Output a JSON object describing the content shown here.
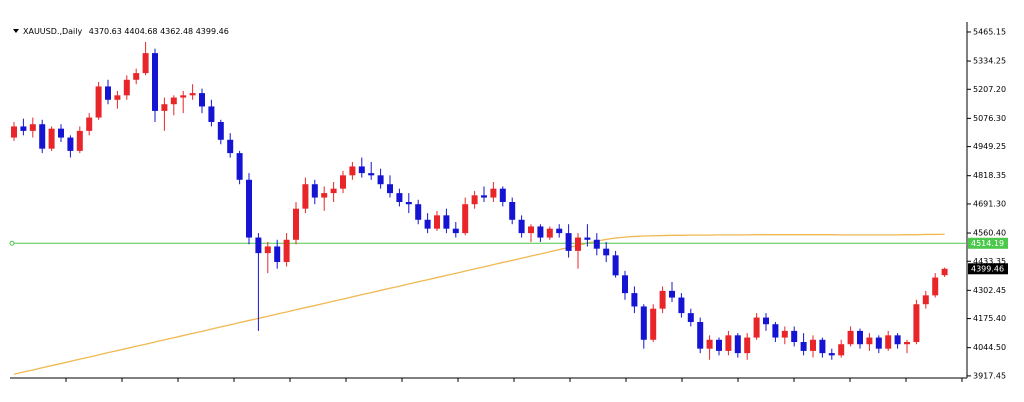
{
  "chart_data": {
    "type": "candlestick",
    "symbol": "XAUUSD.,Daily",
    "up_color": "#e8262a",
    "down_color": "#1414d2",
    "ylim": [
      3908,
      5510
    ],
    "yticks": [
      5465.15,
      5334.25,
      {
        "value": 5207.2,
        "label": "5207.20"
      },
      {
        "value": 5076.3,
        "label": "5076.30"
      },
      4949.25,
      4818.35,
      {
        "value": 4691.3,
        "label": "4691.30"
      },
      {
        "value": 4560.4,
        "label": "4560.40"
      },
      4433.35,
      4302.45,
      {
        "value": 4175.4,
        "label": "4175.40"
      },
      {
        "value": 4044.5,
        "label": "4044.50"
      },
      3917.45
    ],
    "candles": [
      [
        4990,
        5060,
        4975,
        5040
      ],
      [
        5040,
        5075,
        5000,
        5020
      ],
      [
        5020,
        5080,
        4990,
        5050
      ],
      [
        5050,
        5070,
        4920,
        4940
      ],
      [
        4940,
        5040,
        4930,
        5030
      ],
      [
        5030,
        5050,
        4970,
        4990
      ],
      [
        4990,
        5000,
        4900,
        4930
      ],
      [
        4930,
        5040,
        4920,
        5020
      ],
      [
        5020,
        5100,
        5000,
        5080
      ],
      [
        5080,
        5240,
        5070,
        5220
      ],
      [
        5220,
        5250,
        5140,
        5160
      ],
      [
        5160,
        5200,
        5120,
        5180
      ],
      [
        5180,
        5270,
        5160,
        5250
      ],
      [
        5250,
        5300,
        5230,
        5280
      ],
      [
        5280,
        5420,
        5270,
        5370
      ],
      [
        5370,
        5390,
        5060,
        5110
      ],
      [
        5110,
        5170,
        5020,
        5140
      ],
      [
        5140,
        5180,
        5090,
        5170
      ],
      [
        5170,
        5200,
        5100,
        5180
      ],
      [
        5180,
        5230,
        5160,
        5190
      ],
      [
        5190,
        5210,
        5100,
        5130
      ],
      [
        5130,
        5160,
        5040,
        5060
      ],
      [
        5060,
        5070,
        4960,
        4980
      ],
      [
        4980,
        5010,
        4900,
        4920
      ],
      [
        4920,
        4930,
        4780,
        4800
      ],
      [
        4800,
        4830,
        4510,
        4540
      ],
      [
        4540,
        4560,
        4120,
        4470
      ],
      [
        4470,
        4520,
        4380,
        4500
      ],
      [
        4500,
        4530,
        4400,
        4430
      ],
      [
        4430,
        4560,
        4410,
        4530
      ],
      [
        4530,
        4700,
        4510,
        4670
      ],
      [
        4670,
        4810,
        4650,
        4780
      ],
      [
        4780,
        4800,
        4690,
        4720
      ],
      [
        4720,
        4770,
        4660,
        4740
      ],
      [
        4740,
        4790,
        4700,
        4760
      ],
      [
        4760,
        4840,
        4740,
        4820
      ],
      [
        4820,
        4880,
        4800,
        4860
      ],
      [
        4860,
        4900,
        4810,
        4830
      ],
      [
        4830,
        4880,
        4800,
        4820
      ],
      [
        4820,
        4850,
        4760,
        4780
      ],
      [
        4780,
        4820,
        4720,
        4740
      ],
      [
        4740,
        4760,
        4680,
        4700
      ],
      [
        4700,
        4740,
        4650,
        4690
      ],
      [
        4690,
        4710,
        4600,
        4620
      ],
      [
        4620,
        4650,
        4560,
        4580
      ],
      [
        4580,
        4660,
        4570,
        4640
      ],
      [
        4640,
        4670,
        4560,
        4580
      ],
      [
        4580,
        4610,
        4540,
        4560
      ],
      [
        4560,
        4720,
        4550,
        4690
      ],
      [
        4690,
        4750,
        4670,
        4730
      ],
      [
        4730,
        4770,
        4700,
        4720
      ],
      [
        4720,
        4790,
        4700,
        4760
      ],
      [
        4760,
        4770,
        4680,
        4700
      ],
      [
        4700,
        4720,
        4600,
        4620
      ],
      [
        4620,
        4640,
        4540,
        4560
      ],
      [
        4560,
        4600,
        4520,
        4590
      ],
      [
        4590,
        4600,
        4520,
        4540
      ],
      [
        4540,
        4590,
        4530,
        4580
      ],
      [
        4580,
        4600,
        4540,
        4560
      ],
      [
        4560,
        4600,
        4450,
        4480
      ],
      [
        4480,
        4560,
        4400,
        4540
      ],
      [
        4540,
        4600,
        4500,
        4530
      ],
      [
        4530,
        4560,
        4460,
        4490
      ],
      [
        4490,
        4520,
        4430,
        4460
      ],
      [
        4460,
        4480,
        4360,
        4370
      ],
      [
        4370,
        4390,
        4260,
        4290
      ],
      [
        4290,
        4320,
        4200,
        4230
      ],
      [
        4230,
        4240,
        4040,
        4080
      ],
      [
        4080,
        4240,
        4070,
        4220
      ],
      [
        4220,
        4320,
        4200,
        4300
      ],
      [
        4300,
        4340,
        4250,
        4270
      ],
      [
        4270,
        4290,
        4180,
        4200
      ],
      [
        4200,
        4220,
        4140,
        4160
      ],
      [
        4160,
        4180,
        4020,
        4040
      ],
      [
        4040,
        4100,
        3990,
        4080
      ],
      [
        4080,
        4090,
        4010,
        4030
      ],
      [
        4030,
        4120,
        4010,
        4100
      ],
      [
        4100,
        4110,
        4000,
        4020
      ],
      [
        4020,
        4110,
        3990,
        4090
      ],
      [
        4090,
        4200,
        4080,
        4180
      ],
      [
        4180,
        4200,
        4120,
        4150
      ],
      [
        4150,
        4160,
        4070,
        4090
      ],
      [
        4090,
        4140,
        4060,
        4120
      ],
      [
        4120,
        4140,
        4050,
        4070
      ],
      [
        4070,
        4110,
        4010,
        4030
      ],
      [
        4030,
        4100,
        4000,
        4080
      ],
      [
        4080,
        4090,
        4000,
        4020
      ],
      [
        4020,
        4040,
        3990,
        4010
      ],
      [
        4010,
        4080,
        4000,
        4060
      ],
      [
        4060,
        4140,
        4050,
        4120
      ],
      [
        4120,
        4130,
        4040,
        4060
      ],
      [
        4060,
        4110,
        4030,
        4090
      ],
      [
        4090,
        4100,
        4020,
        4040
      ],
      [
        4040,
        4120,
        4030,
        4100
      ],
      [
        4100,
        4110,
        4040,
        4060
      ],
      [
        4060,
        4080,
        4020,
        4070
      ],
      [
        4070,
        4260,
        4060,
        4240
      ],
      [
        4240,
        4300,
        4220,
        4280
      ],
      [
        4280,
        4380,
        4270,
        4360
      ],
      [
        4370.63,
        4404.68,
        4362.48,
        4399.46
      ]
    ],
    "moving_average": {
      "color": "#f0b850",
      "values": [
        3925,
        3935,
        3944,
        3954,
        3964,
        3973,
        3983,
        3993,
        4002,
        4012,
        4022,
        4031,
        4041,
        4051,
        4060,
        4070,
        4080,
        4089,
        4099,
        4109,
        4118,
        4128,
        4138,
        4147,
        4157,
        4167,
        4176,
        4186,
        4196,
        4205,
        4215,
        4225,
        4234,
        4244,
        4254,
        4263,
        4273,
        4283,
        4292,
        4302,
        4312,
        4321,
        4331,
        4341,
        4350,
        4360,
        4370,
        4379,
        4389,
        4399,
        4408,
        4418,
        4428,
        4437,
        4447,
        4457,
        4466,
        4476,
        4486,
        4495,
        4505,
        4515,
        4524,
        4532,
        4538,
        4542,
        4545,
        4547,
        4548,
        4549,
        4550,
        4550,
        4551,
        4551,
        4551,
        4552,
        4552,
        4552,
        4552,
        4553,
        4553,
        4553,
        4553,
        4553,
        4553,
        4553,
        4553,
        4553,
        4552,
        4552,
        4552,
        4552,
        4552,
        4552,
        4552,
        4553,
        4553,
        4554,
        4554,
        4555
      ]
    },
    "hline": {
      "value": 4514.19,
      "color": "#4cc84c"
    }
  }
}
